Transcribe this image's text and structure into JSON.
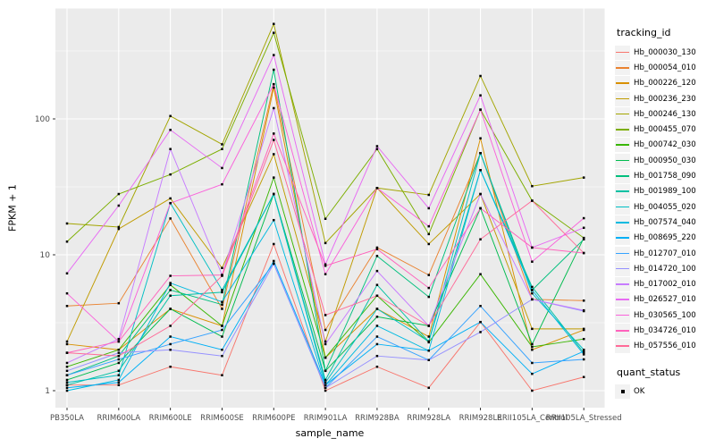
{
  "figure": {
    "x_axis_title": "sample_name",
    "y_axis_title": "FPKM + 1",
    "legend_title": "tracking_id",
    "legend2_title": "quant_status",
    "legend2_entry": "OK"
  },
  "chart_data": {
    "type": "line",
    "title": "",
    "xlabel": "sample_name",
    "ylabel": "FPKM + 1",
    "y_scale": "log10",
    "y_ticks": [
      1,
      10,
      100
    ],
    "y_minor": [
      3.162,
      31.62,
      316.2
    ],
    "ylim": [
      0.75,
      640
    ],
    "grid": true,
    "legend_position": "right",
    "point_shape": "filled-black-square",
    "panel_bg": "#EBEBEB",
    "grid_color": "#FFFFFF",
    "axis_text_color": "#4D4D4D",
    "categories": [
      "PB350LA",
      "RRIM600LA",
      "RRIM600LE",
      "RRIM600SE",
      "RRIM600PE",
      "RRIM901LA",
      "RRIM928BA",
      "RRIM928LA",
      "RRIM928LE",
      "RRII105LA_Control",
      "RRII105LA_Stressed"
    ],
    "series": [
      {
        "name": "Hb_000030_130",
        "color": "#F8766D",
        "values": [
          1.1,
          1.1,
          1.5,
          1.3,
          12,
          1.0,
          1.5,
          1.05,
          3.2,
          1.0,
          1.26
        ]
      },
      {
        "name": "Hb_000054_010",
        "color": "#EA8331",
        "values": [
          4.2,
          4.4,
          18.5,
          4.0,
          180,
          2.8,
          11.3,
          7.1,
          56,
          4.7,
          4.6
        ]
      },
      {
        "name": "Hb_000226_120",
        "color": "#D89000",
        "values": [
          2.2,
          2.0,
          4.0,
          3.0,
          170,
          1.75,
          4.0,
          2.5,
          72,
          2.0,
          2.8
        ]
      },
      {
        "name": "Hb_000236_230",
        "color": "#C09B00",
        "values": [
          2.3,
          15.5,
          26,
          8.0,
          55,
          2.3,
          31,
          12,
          28,
          2.85,
          2.85
        ]
      },
      {
        "name": "Hb_000246_130",
        "color": "#A3A500",
        "values": [
          17,
          16,
          105,
          65,
          500,
          12.2,
          31,
          27.6,
          207,
          32,
          37
        ]
      },
      {
        "name": "Hb_000455_070",
        "color": "#7CAE00",
        "values": [
          12.5,
          28,
          39,
          60,
          430,
          18.4,
          60,
          14.2,
          117,
          25,
          13.3
        ]
      },
      {
        "name": "Hb_000742_030",
        "color": "#39B600",
        "values": [
          1.5,
          2.0,
          6.0,
          3.0,
          37,
          1.75,
          5.0,
          2.27,
          7.2,
          2.1,
          2.4
        ]
      },
      {
        "name": "Hb_000950_030",
        "color": "#00BB4E",
        "values": [
          1.2,
          1.6,
          4.0,
          2.5,
          28,
          1.4,
          3.5,
          3.0,
          22,
          2.2,
          13.3
        ]
      },
      {
        "name": "Hb_001758_090",
        "color": "#00BF7D",
        "values": [
          1.3,
          1.8,
          5.5,
          4.3,
          230,
          1.4,
          9.8,
          4.9,
          56,
          5.5,
          13.0
        ]
      },
      {
        "name": "Hb_001989_100",
        "color": "#00C1A3",
        "values": [
          1.1,
          1.4,
          5.0,
          5.3,
          28,
          1.2,
          6.0,
          2.3,
          42,
          5.8,
          1.9
        ]
      },
      {
        "name": "Hb_004055_020",
        "color": "#00BFC4",
        "values": [
          1.15,
          1.3,
          24,
          5.5,
          28,
          1.15,
          4.0,
          2.3,
          56,
          5.2,
          2.0
        ]
      },
      {
        "name": "Hb_007574_040",
        "color": "#00BAE0",
        "values": [
          1.0,
          1.2,
          6.2,
          4.5,
          18,
          1.1,
          3.0,
          1.97,
          42,
          5.5,
          1.85
        ]
      },
      {
        "name": "Hb_008695_220",
        "color": "#00B0F6",
        "values": [
          1.05,
          1.15,
          2.5,
          2.0,
          9.0,
          1.1,
          2.2,
          1.97,
          3.2,
          1.33,
          1.95
        ]
      },
      {
        "name": "Hb_012707_010",
        "color": "#35A2FF",
        "values": [
          1.3,
          1.7,
          2.2,
          2.8,
          8.6,
          1.05,
          2.5,
          1.68,
          4.2,
          1.6,
          1.7
        ]
      },
      {
        "name": "Hb_014720_100",
        "color": "#9590FF",
        "values": [
          1.4,
          1.9,
          2.0,
          1.8,
          8.6,
          1.05,
          1.8,
          1.68,
          2.7,
          4.7,
          3.85
        ]
      },
      {
        "name": "Hb_017002_010",
        "color": "#C77CFF",
        "values": [
          1.6,
          2.4,
          60,
          7.1,
          120,
          2.2,
          7.6,
          3.0,
          28,
          4.7,
          3.9
        ]
      },
      {
        "name": "Hb_026527_010",
        "color": "#E76BF3",
        "values": [
          7.3,
          23,
          83,
          43.5,
          295,
          8.5,
          63,
          22,
          149,
          11.3,
          15.8
        ]
      },
      {
        "name": "Hb_030565_100",
        "color": "#FA62DB",
        "values": [
          5.2,
          2.3,
          24,
          33,
          180,
          7.2,
          31,
          16.2,
          117,
          8.9,
          18.6
        ]
      },
      {
        "name": "Hb_034726_010",
        "color": "#FF62BC",
        "values": [
          1.9,
          2.3,
          7.0,
          7.1,
          78,
          8.3,
          11,
          5.7,
          22,
          11.3,
          10.3
        ]
      },
      {
        "name": "Hb_057556_010",
        "color": "#FF6A98",
        "values": [
          1.9,
          1.8,
          3.0,
          7.0,
          70,
          3.6,
          5.0,
          3.0,
          13,
          25,
          10.3
        ]
      }
    ],
    "quant_status": {
      "title": "quant_status",
      "entries": [
        {
          "label": "OK",
          "marker": "black-square"
        }
      ]
    }
  }
}
